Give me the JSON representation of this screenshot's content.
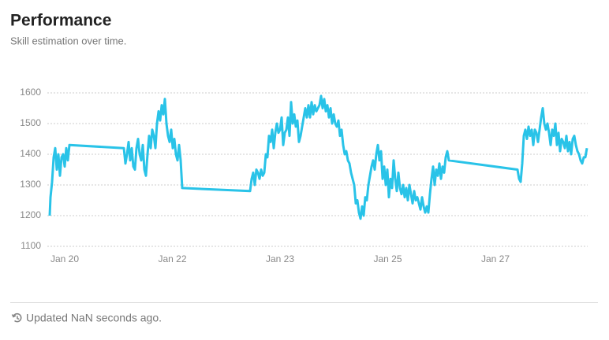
{
  "chart_data": {
    "type": "line",
    "title": "Performance",
    "subtitle": "Skill estimation over time.",
    "color": "#29c3e8",
    "grid": true,
    "xlim": [
      -1.5,
      341
    ],
    "xticks": [
      {
        "value": 9.5,
        "label": "Jan 20"
      },
      {
        "value": 77.75,
        "label": "Jan 22"
      },
      {
        "value": 146,
        "label": "Jan 23"
      },
      {
        "value": 214.25,
        "label": "Jan 25"
      },
      {
        "value": 282.5,
        "label": "Jan 27"
      }
    ],
    "ylim": [
      1100,
      1600
    ],
    "yticks": [
      1100,
      1200,
      1300,
      1400,
      1500,
      1600
    ],
    "x": [
      0,
      0.5,
      1.5,
      2.5,
      3.5,
      4.5,
      5.5,
      6.5,
      7.5,
      8.5,
      9.5,
      10.5,
      11.5,
      12.5,
      47,
      48,
      49,
      50,
      51,
      52,
      53,
      54,
      55,
      56,
      57,
      58,
      59,
      60,
      61,
      62,
      63,
      64,
      65,
      66,
      67,
      68,
      69,
      70,
      71,
      72,
      73,
      74,
      75,
      76,
      77,
      78,
      79,
      80,
      81,
      82,
      83,
      84,
      127,
      128,
      129,
      130,
      131,
      132,
      133,
      134,
      135,
      136,
      137,
      138,
      139,
      140,
      141,
      142,
      143,
      144,
      145,
      146,
      147,
      148,
      149,
      150,
      151,
      152,
      153,
      154,
      155,
      156,
      157,
      158,
      159,
      160,
      161,
      162,
      163,
      164,
      165,
      166,
      167,
      168,
      169,
      170,
      171,
      172,
      173,
      174,
      175,
      176,
      177,
      178,
      179,
      180,
      181,
      182,
      183,
      184,
      185,
      186,
      187,
      188,
      189,
      190,
      191,
      192,
      193,
      194,
      195,
      196,
      197,
      198,
      199,
      200,
      201,
      202,
      203,
      204,
      205,
      206,
      207,
      208,
      209,
      210,
      211,
      212,
      213,
      214,
      215,
      216,
      217,
      218,
      219,
      220,
      221,
      222,
      223,
      224,
      225,
      226,
      227,
      228,
      229,
      230,
      231,
      232,
      233,
      234,
      235,
      236,
      237,
      238,
      239,
      240,
      241,
      242,
      243,
      244,
      245,
      246,
      247,
      248,
      249,
      250,
      251,
      252,
      253,
      296.5,
      297.5,
      298.5,
      299.5,
      300.5,
      301.5,
      302.5,
      303.5,
      304.5,
      305.5,
      306.5,
      307.5,
      308.5,
      309.5,
      310.5,
      311.5,
      312.5,
      313.5,
      314.5,
      315.5,
      316.5,
      317.5,
      318.5,
      319.5,
      320.5,
      321.5,
      322.5,
      323.5,
      324.5,
      325.5,
      326.5,
      327.5,
      328.5,
      329.5,
      330.5,
      331.5,
      332.5,
      333.5,
      334.5,
      335.5,
      336.5,
      337.5,
      338.5,
      339.5,
      340.5
    ],
    "values": [
      1200,
      1260,
      1310,
      1390,
      1420,
      1350,
      1400,
      1330,
      1390,
      1400,
      1360,
      1420,
      1380,
      1430,
      1420,
      1370,
      1400,
      1440,
      1380,
      1420,
      1360,
      1350,
      1420,
      1450,
      1400,
      1380,
      1430,
      1350,
      1330,
      1400,
      1460,
      1420,
      1480,
      1460,
      1420,
      1500,
      1540,
      1510,
      1560,
      1530,
      1580,
      1500,
      1460,
      1440,
      1480,
      1420,
      1450,
      1400,
      1380,
      1430,
      1380,
      1290,
      1280,
      1320,
      1340,
      1300,
      1350,
      1340,
      1320,
      1350,
      1330,
      1340,
      1400,
      1390,
      1460,
      1440,
      1480,
      1420,
      1470,
      1500,
      1470,
      1480,
      1520,
      1430,
      1470,
      1480,
      1520,
      1460,
      1570,
      1500,
      1530,
      1490,
      1510,
      1440,
      1460,
      1490,
      1520,
      1550,
      1520,
      1560,
      1520,
      1570,
      1530,
      1560,
      1540,
      1550,
      1560,
      1590,
      1550,
      1580,
      1540,
      1560,
      1520,
      1550,
      1500,
      1530,
      1500,
      1490,
      1510,
      1460,
      1480,
      1430,
      1400,
      1410,
      1380,
      1370,
      1340,
      1320,
      1300,
      1240,
      1250,
      1210,
      1190,
      1230,
      1200,
      1260,
      1250,
      1300,
      1330,
      1360,
      1380,
      1350,
      1400,
      1430,
      1380,
      1410,
      1320,
      1360,
      1300,
      1350,
      1260,
      1320,
      1290,
      1380,
      1320,
      1280,
      1340,
      1290,
      1270,
      1300,
      1260,
      1290,
      1250,
      1300,
      1270,
      1240,
      1280,
      1250,
      1260,
      1240,
      1220,
      1260,
      1230,
      1210,
      1230,
      1210,
      1270,
      1320,
      1360,
      1300,
      1350,
      1330,
      1370,
      1320,
      1360,
      1340,
      1390,
      1410,
      1380,
      1350,
      1320,
      1310,
      1370,
      1460,
      1480,
      1450,
      1490,
      1460,
      1480,
      1430,
      1480,
      1470,
      1440,
      1480,
      1520,
      1550,
      1500,
      1480,
      1500,
      1470,
      1430,
      1480,
      1460,
      1500,
      1430,
      1470,
      1410,
      1450,
      1440,
      1420,
      1460,
      1410,
      1440,
      1400,
      1450,
      1460,
      1430,
      1410,
      1400,
      1380,
      1370,
      1390,
      1390,
      1420
    ]
  },
  "footer": {
    "text": "Updated NaN seconds ago."
  }
}
